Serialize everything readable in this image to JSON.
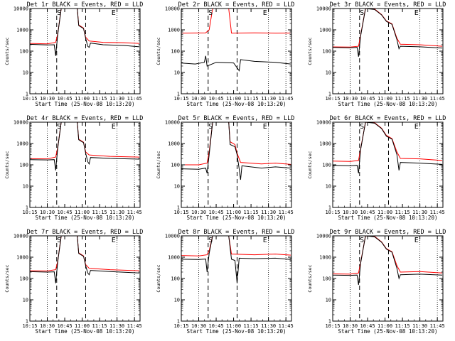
{
  "chart_data": [
    {
      "type": "line",
      "title": "Det 1r BLACK = Events, RED = LLD",
      "xlabel": "Start Time (25-Nov-08 10:13:20)",
      "ylabel": "Counts/sec",
      "x_ticks": [
        "10:15",
        "10:30",
        "10:45",
        "11:00",
        "11:15",
        "11:30",
        "11:45"
      ],
      "y_ticks": [
        "1",
        "10",
        "100",
        "1000",
        "10000"
      ],
      "ylim": [
        1,
        10000
      ],
      "log_y": true,
      "markers": {
        "S": "S",
        "E": "E"
      },
      "events": [
        [
          10.22,
          210
        ],
        [
          10.5,
          195
        ],
        [
          10.6,
          200
        ],
        [
          10.62,
          60
        ],
        [
          10.65,
          600
        ],
        [
          10.7,
          10000
        ],
        [
          10.93,
          10000
        ],
        [
          10.95,
          1600
        ],
        [
          11.02,
          1150
        ],
        [
          11.05,
          400
        ],
        [
          11.08,
          170
        ],
        [
          11.1,
          150
        ],
        [
          11.12,
          240
        ],
        [
          11.3,
          200
        ],
        [
          11.6,
          185
        ],
        [
          11.82,
          160
        ]
      ],
      "lld": [
        [
          10.22,
          230
        ],
        [
          10.5,
          220
        ],
        [
          10.62,
          260
        ],
        [
          10.65,
          650
        ],
        [
          10.7,
          10000
        ],
        [
          10.93,
          10000
        ],
        [
          10.95,
          1700
        ],
        [
          11.02,
          1200
        ],
        [
          11.05,
          450
        ],
        [
          11.1,
          300
        ],
        [
          11.3,
          260
        ],
        [
          11.6,
          250
        ],
        [
          11.82,
          230
        ]
      ]
    },
    {
      "type": "line",
      "title": "Det 2r BLACK = Events, RED = LLD",
      "xlabel": "Start Time (25-Nov-08 10:13:20)",
      "ylabel": "Counts/sec",
      "x_ticks": [
        "10:15",
        "10:30",
        "10:45",
        "11:00",
        "11:15",
        "11:30",
        "11:45"
      ],
      "y_ticks": [
        "1",
        "10",
        "100",
        "1000",
        "10000"
      ],
      "ylim": [
        1,
        10000
      ],
      "log_y": true,
      "markers": {
        "S": "S",
        "E": "E"
      },
      "events": [
        [
          10.22,
          28
        ],
        [
          10.45,
          25
        ],
        [
          10.58,
          30
        ],
        [
          10.6,
          60
        ],
        [
          10.62,
          20
        ],
        [
          10.75,
          30
        ],
        [
          11.0,
          28
        ],
        [
          11.08,
          12
        ],
        [
          11.1,
          40
        ],
        [
          11.3,
          33
        ],
        [
          11.6,
          30
        ],
        [
          11.82,
          25
        ]
      ],
      "lld": [
        [
          10.22,
          700
        ],
        [
          10.6,
          720
        ],
        [
          10.65,
          1000
        ],
        [
          10.7,
          10000
        ],
        [
          10.93,
          10000
        ],
        [
          10.97,
          700
        ],
        [
          11.3,
          720
        ],
        [
          11.6,
          700
        ],
        [
          11.82,
          710
        ]
      ]
    },
    {
      "type": "line",
      "title": "Det 3r BLACK = Events, RED = LLD",
      "xlabel": "Start Time (25-Nov-08 10:13:20)",
      "ylabel": "Counts/sec",
      "x_ticks": [
        "10:15",
        "10:30",
        "10:45",
        "11:00",
        "11:15",
        "11:30",
        "11:45"
      ],
      "y_ticks": [
        "1",
        "10",
        "100",
        "1000",
        "10000"
      ],
      "ylim": [
        1,
        10000
      ],
      "log_y": true,
      "markers": {
        "S": "S",
        "E": "E"
      },
      "events": [
        [
          10.22,
          150
        ],
        [
          10.5,
          145
        ],
        [
          10.6,
          150
        ],
        [
          10.62,
          55
        ],
        [
          10.65,
          500
        ],
        [
          10.72,
          10000
        ],
        [
          10.85,
          9000
        ],
        [
          10.95,
          5000
        ],
        [
          11.02,
          2500
        ],
        [
          11.1,
          1800
        ],
        [
          11.17,
          350
        ],
        [
          11.2,
          130
        ],
        [
          11.22,
          170
        ],
        [
          11.5,
          160
        ],
        [
          11.82,
          140
        ]
      ],
      "lld": [
        [
          10.22,
          160
        ],
        [
          10.5,
          155
        ],
        [
          10.62,
          170
        ],
        [
          10.65,
          550
        ],
        [
          10.72,
          10000
        ],
        [
          10.85,
          9500
        ],
        [
          10.95,
          5200
        ],
        [
          11.02,
          2600
        ],
        [
          11.1,
          1900
        ],
        [
          11.17,
          400
        ],
        [
          11.22,
          210
        ],
        [
          11.5,
          200
        ],
        [
          11.82,
          170
        ]
      ]
    },
    {
      "type": "line",
      "title": "Det 4r BLACK = Events, RED = LLD",
      "xlabel": "Start Time (25-Nov-08 10:13:20)",
      "ylabel": "Counts/sec",
      "x_ticks": [
        "10:15",
        "10:30",
        "10:45",
        "11:00",
        "11:15",
        "11:30",
        "11:45"
      ],
      "y_ticks": [
        "1",
        "10",
        "100",
        "1000",
        "10000"
      ],
      "ylim": [
        1,
        10000
      ],
      "log_y": true,
      "markers": {
        "S": "S",
        "E": "E"
      },
      "events": [
        [
          10.22,
          175
        ],
        [
          10.5,
          170
        ],
        [
          10.6,
          175
        ],
        [
          10.62,
          55
        ],
        [
          10.65,
          600
        ],
        [
          10.7,
          10000
        ],
        [
          10.93,
          10000
        ],
        [
          10.95,
          1500
        ],
        [
          11.02,
          1100
        ],
        [
          11.05,
          350
        ],
        [
          11.08,
          140
        ],
        [
          11.1,
          110
        ],
        [
          11.12,
          220
        ],
        [
          11.4,
          200
        ],
        [
          11.82,
          185
        ]
      ],
      "lld": [
        [
          10.22,
          195
        ],
        [
          10.5,
          190
        ],
        [
          10.62,
          230
        ],
        [
          10.65,
          650
        ],
        [
          10.7,
          10000
        ],
        [
          10.93,
          10000
        ],
        [
          10.95,
          1600
        ],
        [
          11.02,
          1150
        ],
        [
          11.05,
          400
        ],
        [
          11.1,
          290
        ],
        [
          11.4,
          250
        ],
        [
          11.82,
          230
        ]
      ]
    },
    {
      "type": "line",
      "title": "Det 5r BLACK = Events, RED = LLD",
      "xlabel": "Start Time (25-Nov-08 10:13:20)",
      "ylabel": "Counts/sec",
      "x_ticks": [
        "10:15",
        "10:30",
        "10:45",
        "11:00",
        "11:15",
        "11:30",
        "11:45"
      ],
      "y_ticks": [
        "1",
        "10",
        "100",
        "1000",
        "10000"
      ],
      "ylim": [
        1,
        10000
      ],
      "log_y": true,
      "markers": {
        "S": "S",
        "E": "E"
      },
      "events": [
        [
          10.22,
          65
        ],
        [
          10.5,
          62
        ],
        [
          10.6,
          70
        ],
        [
          10.62,
          40
        ],
        [
          10.65,
          300
        ],
        [
          10.7,
          10000
        ],
        [
          10.93,
          10000
        ],
        [
          10.95,
          900
        ],
        [
          11.02,
          700
        ],
        [
          11.05,
          300
        ],
        [
          11.08,
          65
        ],
        [
          11.1,
          20
        ],
        [
          11.12,
          90
        ],
        [
          11.4,
          70
        ],
        [
          11.6,
          80
        ],
        [
          11.82,
          70
        ]
      ],
      "lld": [
        [
          10.22,
          100
        ],
        [
          10.5,
          100
        ],
        [
          10.62,
          120
        ],
        [
          10.65,
          400
        ],
        [
          10.7,
          10000
        ],
        [
          10.93,
          10000
        ],
        [
          10.95,
          1200
        ],
        [
          11.02,
          900
        ],
        [
          11.05,
          350
        ],
        [
          11.1,
          130
        ],
        [
          11.4,
          110
        ],
        [
          11.6,
          120
        ],
        [
          11.82,
          105
        ]
      ]
    },
    {
      "type": "line",
      "title": "Det 6r BLACK = Events, RED = LLD",
      "xlabel": "Start Time (25-Nov-08 10:13:20)",
      "ylabel": "Counts/sec",
      "x_ticks": [
        "10:15",
        "10:30",
        "10:45",
        "11:00",
        "11:15",
        "11:30",
        "11:45"
      ],
      "y_ticks": [
        "1",
        "10",
        "100",
        "1000",
        "10000"
      ],
      "ylim": [
        1,
        10000
      ],
      "log_y": true,
      "markers": {
        "S": "S",
        "E": "E"
      },
      "events": [
        [
          10.22,
          95
        ],
        [
          10.5,
          90
        ],
        [
          10.6,
          95
        ],
        [
          10.62,
          40
        ],
        [
          10.65,
          500
        ],
        [
          10.72,
          10000
        ],
        [
          10.85,
          9000
        ],
        [
          10.95,
          5000
        ],
        [
          11.02,
          2200
        ],
        [
          11.1,
          1600
        ],
        [
          11.17,
          300
        ],
        [
          11.2,
          55
        ],
        [
          11.22,
          130
        ],
        [
          11.5,
          120
        ],
        [
          11.82,
          105
        ]
      ],
      "lld": [
        [
          10.22,
          150
        ],
        [
          10.5,
          145
        ],
        [
          10.62,
          160
        ],
        [
          10.65,
          550
        ],
        [
          10.72,
          10000
        ],
        [
          10.85,
          9500
        ],
        [
          10.95,
          5200
        ],
        [
          11.02,
          2400
        ],
        [
          11.1,
          1700
        ],
        [
          11.17,
          400
        ],
        [
          11.22,
          200
        ],
        [
          11.5,
          190
        ],
        [
          11.82,
          160
        ]
      ]
    },
    {
      "type": "line",
      "title": "Det 7r BLACK = Events, RED = LLD",
      "xlabel": "Start Time (25-Nov-08 10:13:20)",
      "ylabel": "Counts/sec",
      "x_ticks": [
        "10:15",
        "10:30",
        "10:45",
        "11:00",
        "11:15",
        "11:30",
        "11:45"
      ],
      "y_ticks": [
        "1",
        "10",
        "100",
        "1000",
        "10000"
      ],
      "ylim": [
        1,
        10000
      ],
      "log_y": true,
      "markers": {
        "S": "S",
        "E": "E"
      },
      "events": [
        [
          10.22,
          210
        ],
        [
          10.5,
          200
        ],
        [
          10.6,
          205
        ],
        [
          10.62,
          60
        ],
        [
          10.65,
          600
        ],
        [
          10.7,
          10000
        ],
        [
          10.93,
          10000
        ],
        [
          10.95,
          1500
        ],
        [
          11.02,
          1100
        ],
        [
          11.05,
          400
        ],
        [
          11.08,
          180
        ],
        [
          11.1,
          150
        ],
        [
          11.12,
          240
        ],
        [
          11.4,
          210
        ],
        [
          11.82,
          180
        ]
      ],
      "lld": [
        [
          10.22,
          230
        ],
        [
          10.5,
          225
        ],
        [
          10.62,
          260
        ],
        [
          10.65,
          650
        ],
        [
          10.7,
          10000
        ],
        [
          10.93,
          10000
        ],
        [
          10.95,
          1600
        ],
        [
          11.02,
          1150
        ],
        [
          11.05,
          450
        ],
        [
          11.1,
          300
        ],
        [
          11.4,
          260
        ],
        [
          11.82,
          230
        ]
      ]
    },
    {
      "type": "line",
      "title": "Det 8r BLACK = Events, RED = LLD",
      "xlabel": "Start Time (25-Nov-08 10:13:20)",
      "ylabel": "Counts/sec",
      "x_ticks": [
        "10:15",
        "10:30",
        "10:45",
        "11:00",
        "11:15",
        "11:30",
        "11:45"
      ],
      "y_ticks": [
        "1",
        "10",
        "100",
        "1000",
        "10000"
      ],
      "ylim": [
        1,
        10000
      ],
      "log_y": true,
      "markers": {
        "S": "S",
        "E": "E"
      },
      "events": [
        [
          10.22,
          800
        ],
        [
          10.5,
          780
        ],
        [
          10.6,
          820
        ],
        [
          10.62,
          200
        ],
        [
          10.65,
          1500
        ],
        [
          10.7,
          10000
        ],
        [
          10.93,
          10000
        ],
        [
          10.97,
          800
        ],
        [
          11.02,
          700
        ],
        [
          11.05,
          60
        ],
        [
          11.08,
          900
        ],
        [
          11.3,
          850
        ],
        [
          11.6,
          900
        ],
        [
          11.82,
          780
        ]
      ],
      "lld": [
        [
          10.22,
          1200
        ],
        [
          10.5,
          1150
        ],
        [
          10.62,
          1300
        ],
        [
          10.65,
          2000
        ],
        [
          10.7,
          10000
        ],
        [
          10.93,
          10000
        ],
        [
          10.97,
          1400
        ],
        [
          11.3,
          1300
        ],
        [
          11.6,
          1400
        ],
        [
          11.82,
          1250
        ]
      ]
    },
    {
      "type": "line",
      "title": "Det 9r BLACK = Events, RED = LLD",
      "xlabel": "Start Time (25-Nov-08 10:13:20)",
      "ylabel": "Counts/sec",
      "x_ticks": [
        "10:15",
        "10:30",
        "10:45",
        "11:00",
        "11:15",
        "11:30",
        "11:45"
      ],
      "y_ticks": [
        "1",
        "10",
        "100",
        "1000",
        "10000"
      ],
      "ylim": [
        1,
        10000
      ],
      "log_y": true,
      "markers": {
        "S": "S",
        "E": "E"
      },
      "events": [
        [
          10.22,
          145
        ],
        [
          10.5,
          140
        ],
        [
          10.6,
          145
        ],
        [
          10.62,
          50
        ],
        [
          10.65,
          500
        ],
        [
          10.72,
          10000
        ],
        [
          10.85,
          9000
        ],
        [
          10.95,
          5000
        ],
        [
          11.02,
          2400
        ],
        [
          11.1,
          1700
        ],
        [
          11.17,
          300
        ],
        [
          11.2,
          100
        ],
        [
          11.22,
          150
        ],
        [
          11.5,
          160
        ],
        [
          11.82,
          145
        ]
      ],
      "lld": [
        [
          10.22,
          165
        ],
        [
          10.5,
          160
        ],
        [
          10.62,
          180
        ],
        [
          10.65,
          550
        ],
        [
          10.72,
          10000
        ],
        [
          10.85,
          9500
        ],
        [
          10.95,
          5200
        ],
        [
          11.02,
          2500
        ],
        [
          11.1,
          1800
        ],
        [
          11.17,
          400
        ],
        [
          11.22,
          200
        ],
        [
          11.5,
          210
        ],
        [
          11.82,
          180
        ]
      ]
    }
  ],
  "colors": {
    "events": "#000000",
    "lld": "#ff0000",
    "axes": "#000000"
  }
}
